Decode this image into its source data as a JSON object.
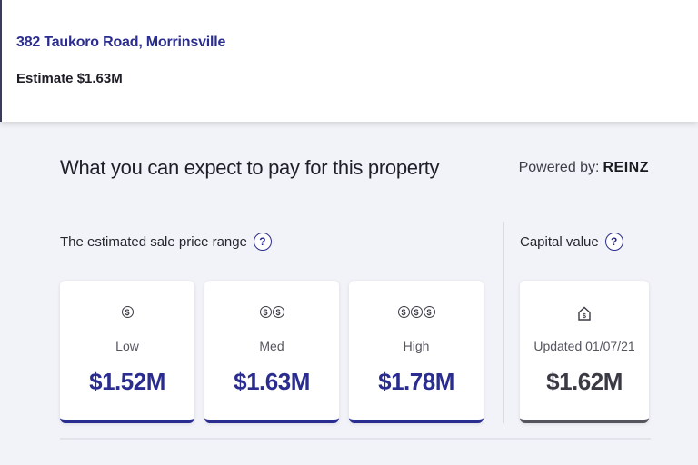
{
  "property": {
    "address": "382 Taukoro Road, Morrinsville",
    "estimate": "Estimate $1.63M"
  },
  "section": {
    "title": "What you can expect to pay for this property",
    "powered_by_label": "Powered by:",
    "powered_by_brand": "REINZ"
  },
  "range": {
    "label": "The estimated sale price range",
    "help_icon": "?",
    "cards": [
      {
        "icon": "dollar-coin-icon",
        "coins": "$",
        "label": "Low",
        "value": "$1.52M"
      },
      {
        "icon": "two-dollar-coins-icon",
        "coins": "$$",
        "label": "Med",
        "value": "$1.63M"
      },
      {
        "icon": "three-dollar-coins-icon",
        "coins": "$$$",
        "label": "High",
        "value": "$1.78M"
      }
    ]
  },
  "capital": {
    "label": "Capital value",
    "help_icon": "?",
    "updated": "Updated 01/07/21",
    "value": "$1.62M",
    "icon": "house-dollar-icon"
  },
  "colors": {
    "accent": "#2a2c8f",
    "background": "#f2f3f8",
    "card": "#ffffff",
    "grey_border": "#54545c"
  }
}
